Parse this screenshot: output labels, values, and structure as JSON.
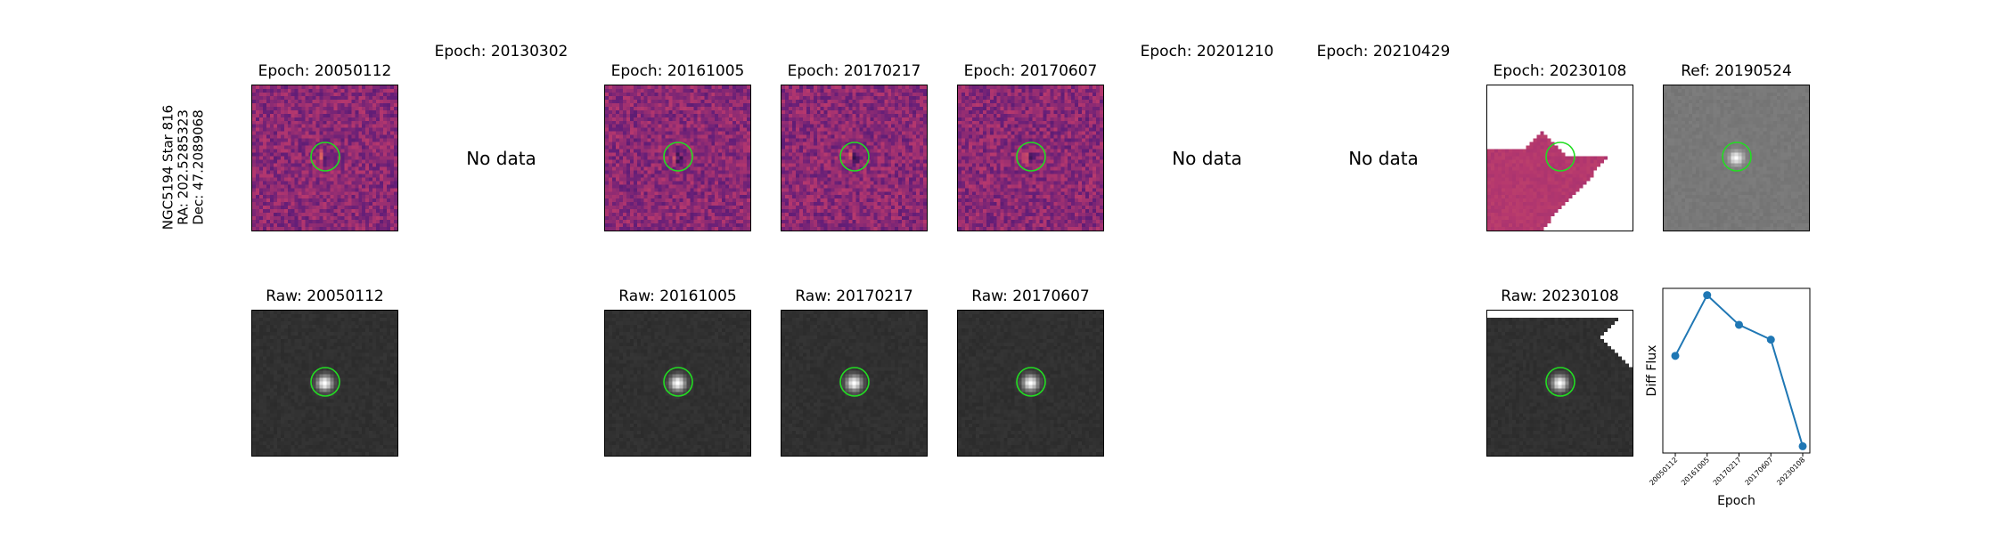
{
  "star_label": {
    "line1": "NGC5194 Star 816",
    "line2": "RA: 202.5285323",
    "line3": "Dec: 47.2089068"
  },
  "no_data_text": "No data",
  "top_row": [
    {
      "title": "Epoch: 20050112",
      "has_data": true,
      "style": "diff"
    },
    {
      "title": "Epoch: 20130302",
      "has_data": false
    },
    {
      "title": "Epoch: 20161005",
      "has_data": true,
      "style": "diff"
    },
    {
      "title": "Epoch: 20170217",
      "has_data": true,
      "style": "diff"
    },
    {
      "title": "Epoch: 20170607",
      "has_data": true,
      "style": "diff"
    },
    {
      "title": "Epoch: 20201210",
      "has_data": false
    },
    {
      "title": "Epoch: 20210429",
      "has_data": false
    },
    {
      "title": "Epoch: 20230108",
      "has_data": true,
      "style": "diff-edge"
    },
    {
      "title": "Ref: 20190524",
      "has_data": true,
      "style": "ref"
    }
  ],
  "bottom_row": [
    {
      "title": "Raw: 20050112",
      "has_data": true,
      "style": "raw"
    },
    {
      "title": "",
      "has_data": false
    },
    {
      "title": "Raw: 20161005",
      "has_data": true,
      "style": "raw"
    },
    {
      "title": "Raw: 20170217",
      "has_data": true,
      "style": "raw"
    },
    {
      "title": "Raw: 20170607",
      "has_data": true,
      "style": "raw"
    },
    {
      "title": "",
      "has_data": false
    },
    {
      "title": "",
      "has_data": false
    },
    {
      "title": "Raw: 20230108",
      "has_data": true,
      "style": "raw-edge"
    }
  ],
  "colors": {
    "circle": "#22dd22",
    "line": "#1f77b4",
    "magma_low": "#3b0f6f",
    "magma_high": "#fde0a0"
  },
  "chart_data": {
    "type": "line",
    "categories": [
      "20050112",
      "20161005",
      "20170217",
      "20170607",
      "20230108"
    ],
    "values": [
      0.55,
      1.0,
      0.78,
      0.67,
      -0.12
    ],
    "xlabel": "Epoch",
    "ylabel": "Diff Flux",
    "ylim": [
      -0.17,
      1.05
    ],
    "grid": false,
    "ticks_y_visible": false
  }
}
